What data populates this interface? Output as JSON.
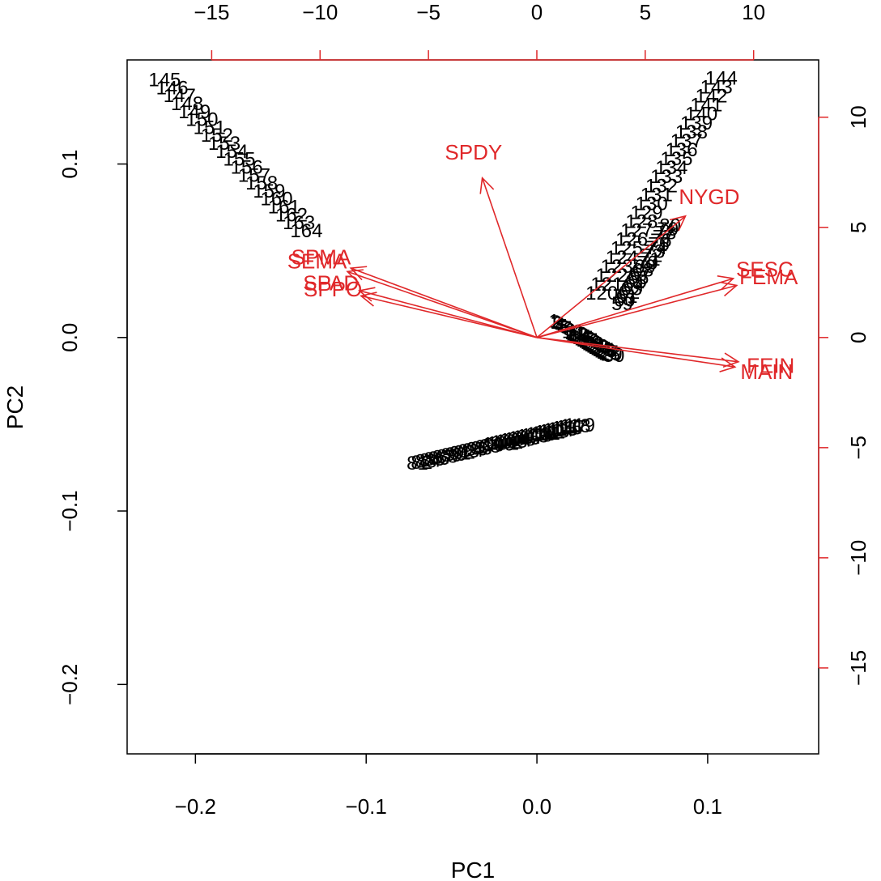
{
  "chart_data": {
    "type": "scatter",
    "title": "",
    "xlabel": "PC1",
    "ylabel": "PC2",
    "xlim": [
      -0.24,
      0.165
    ],
    "ylim": [
      -0.24,
      0.16
    ],
    "x_ticks": [
      -0.2,
      -0.1,
      0.0,
      0.1
    ],
    "x_tick_labels": [
      "−0.2",
      "−0.1",
      "0.0",
      "0.1"
    ],
    "y_ticks": [
      -0.2,
      -0.1,
      0.0,
      0.1
    ],
    "y_tick_labels": [
      "−0.2",
      "−0.1",
      "0.0",
      "0.1"
    ],
    "top_axis": {
      "lim": [
        -18.9,
        13.0
      ],
      "ticks": [
        -15,
        -10,
        -5,
        0,
        5,
        10
      ],
      "tick_labels": [
        "−15",
        "−10",
        "−5",
        "0",
        "5",
        "10"
      ]
    },
    "right_axis": {
      "lim": [
        -18.9,
        12.6
      ],
      "ticks": [
        -15,
        -10,
        -5,
        0,
        5,
        10
      ],
      "tick_labels": [
        "−15",
        "−10",
        "−5",
        "0",
        "5",
        "10"
      ]
    },
    "observation_groups": [
      {
        "labels": [
          "145",
          "146",
          "147",
          "148",
          "149",
          "150",
          "151",
          "152",
          "153",
          "154",
          "155",
          "156",
          "157",
          "158",
          "159",
          "160",
          "161",
          "162",
          "163",
          "164"
        ],
        "from": [
          -0.218,
          0.149
        ],
        "to": [
          -0.135,
          0.062
        ]
      },
      {
        "labels": [
          "120",
          "121",
          "122",
          "123",
          "124",
          "125",
          "126",
          "127",
          "128",
          "129",
          "130",
          "131",
          "132",
          "133",
          "134",
          "135",
          "136",
          "137",
          "138",
          "139",
          "140",
          "141",
          "142",
          "143",
          "144"
        ],
        "from": [
          0.038,
          0.026
        ],
        "to": [
          0.108,
          0.15
        ]
      },
      {
        "labels": [
          "59",
          "60",
          "61",
          "62",
          "63",
          "64",
          "65",
          "66",
          "67",
          "68",
          "69",
          "70",
          "71",
          "72",
          "73",
          "74",
          "75",
          "76",
          "77",
          "78",
          "79",
          "80"
        ],
        "from": [
          0.05,
          0.02
        ],
        "to": [
          0.078,
          0.065
        ]
      },
      {
        "labels": [
          "1",
          "2",
          "3",
          "4",
          "5",
          "6",
          "7",
          "8",
          "9",
          "10",
          "11",
          "12",
          "13",
          "14",
          "15",
          "16",
          "17",
          "18",
          "19",
          "20",
          "21",
          "22",
          "23",
          "24",
          "25",
          "26",
          "27",
          "28",
          "29",
          "30"
        ],
        "from": [
          0.01,
          0.01
        ],
        "to": [
          0.045,
          -0.01
        ]
      },
      {
        "labels": [
          "81",
          "82",
          "83",
          "84",
          "85",
          "86",
          "87",
          "88",
          "89",
          "90",
          "91",
          "92",
          "93",
          "94",
          "95",
          "96",
          "97",
          "98",
          "99",
          "100",
          "101",
          "102",
          "103",
          "104",
          "105",
          "106",
          "107",
          "108",
          "109",
          "110",
          "111",
          "112",
          "113",
          "114",
          "115",
          "116",
          "117",
          "118",
          "119"
        ],
        "from": [
          -0.07,
          -0.072
        ],
        "to": [
          0.025,
          -0.05
        ]
      }
    ],
    "observation_labels_visible": [
      "145",
      "155",
      "153",
      "154",
      "151",
      "152",
      "150",
      "144",
      "143",
      "142",
      "141",
      "140",
      "139",
      "134",
      "135",
      "59",
      "60",
      "79",
      "37",
      "91",
      "56",
      "25"
    ],
    "loadings": [
      {
        "name": "SPDY",
        "x": -0.032,
        "y": 0.092
      },
      {
        "name": "NYGD",
        "x": 0.087,
        "y": 0.07
      },
      {
        "name": "SESC",
        "x": 0.115,
        "y": 0.034
      },
      {
        "name": "FEMA",
        "x": 0.117,
        "y": 0.03
      },
      {
        "name": "FEIN",
        "x": 0.118,
        "y": -0.014
      },
      {
        "name": "MAIN",
        "x": 0.116,
        "y": -0.017
      },
      {
        "name": "SPMA",
        "x": -0.109,
        "y": 0.04
      },
      {
        "name": "SEMA",
        "x": -0.111,
        "y": 0.038
      },
      {
        "name": "SPAD",
        "x": -0.104,
        "y": 0.027
      },
      {
        "name": "SPPO",
        "x": -0.103,
        "y": 0.024
      }
    ],
    "colors": {
      "points": "#000000",
      "loadings": "#e0282a"
    }
  }
}
